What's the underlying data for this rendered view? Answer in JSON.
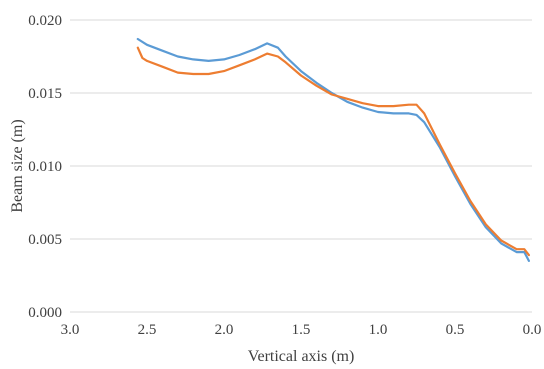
{
  "chart_data": {
    "type": "line",
    "xlabel": "Vertical axis (m)",
    "ylabel": "Beam size (m)",
    "xlim": [
      3.0,
      0.0
    ],
    "x_reversed": true,
    "ylim": [
      0.0,
      0.02
    ],
    "x_ticks": [
      "3.0",
      "2.5",
      "2.0",
      "1.5",
      "1.0",
      "0.5",
      "0.0"
    ],
    "x_tick_values": [
      3.0,
      2.5,
      2.0,
      1.5,
      1.0,
      0.5,
      0.0
    ],
    "y_ticks": [
      "0.000",
      "0.005",
      "0.010",
      "0.015",
      "0.020"
    ],
    "y_tick_values": [
      0.0,
      0.005,
      0.01,
      0.015,
      0.02
    ],
    "grid": "horizontal",
    "legend": "none",
    "series": [
      {
        "color": "#5b9bd5",
        "x": [
          2.56,
          2.5,
          2.4,
          2.3,
          2.2,
          2.1,
          2.0,
          1.9,
          1.8,
          1.72,
          1.65,
          1.6,
          1.5,
          1.4,
          1.3,
          1.2,
          1.1,
          1.0,
          0.9,
          0.8,
          0.75,
          0.7,
          0.6,
          0.5,
          0.4,
          0.3,
          0.2,
          0.1,
          0.05,
          0.02
        ],
        "y": [
          0.0187,
          0.0183,
          0.0179,
          0.0175,
          0.0173,
          0.0172,
          0.0173,
          0.0176,
          0.018,
          0.0184,
          0.0181,
          0.0175,
          0.0165,
          0.0157,
          0.015,
          0.0144,
          0.014,
          0.0137,
          0.0136,
          0.0136,
          0.0135,
          0.013,
          0.0113,
          0.0093,
          0.0074,
          0.0058,
          0.0047,
          0.0041,
          0.0041,
          0.0035
        ]
      },
      {
        "color": "#ed7d31",
        "x": [
          2.56,
          2.53,
          2.5,
          2.4,
          2.3,
          2.2,
          2.1,
          2.0,
          1.9,
          1.8,
          1.72,
          1.65,
          1.6,
          1.5,
          1.4,
          1.3,
          1.2,
          1.1,
          1.0,
          0.9,
          0.8,
          0.75,
          0.7,
          0.6,
          0.5,
          0.4,
          0.3,
          0.2,
          0.1,
          0.05,
          0.02
        ],
        "y": [
          0.0181,
          0.0174,
          0.0172,
          0.0168,
          0.0164,
          0.0163,
          0.0163,
          0.0165,
          0.0169,
          0.0173,
          0.0177,
          0.0175,
          0.0171,
          0.0162,
          0.0155,
          0.0149,
          0.0146,
          0.0143,
          0.0141,
          0.0141,
          0.0142,
          0.0142,
          0.0136,
          0.0115,
          0.0095,
          0.0076,
          0.006,
          0.0049,
          0.0043,
          0.0043,
          0.0039
        ]
      }
    ]
  }
}
